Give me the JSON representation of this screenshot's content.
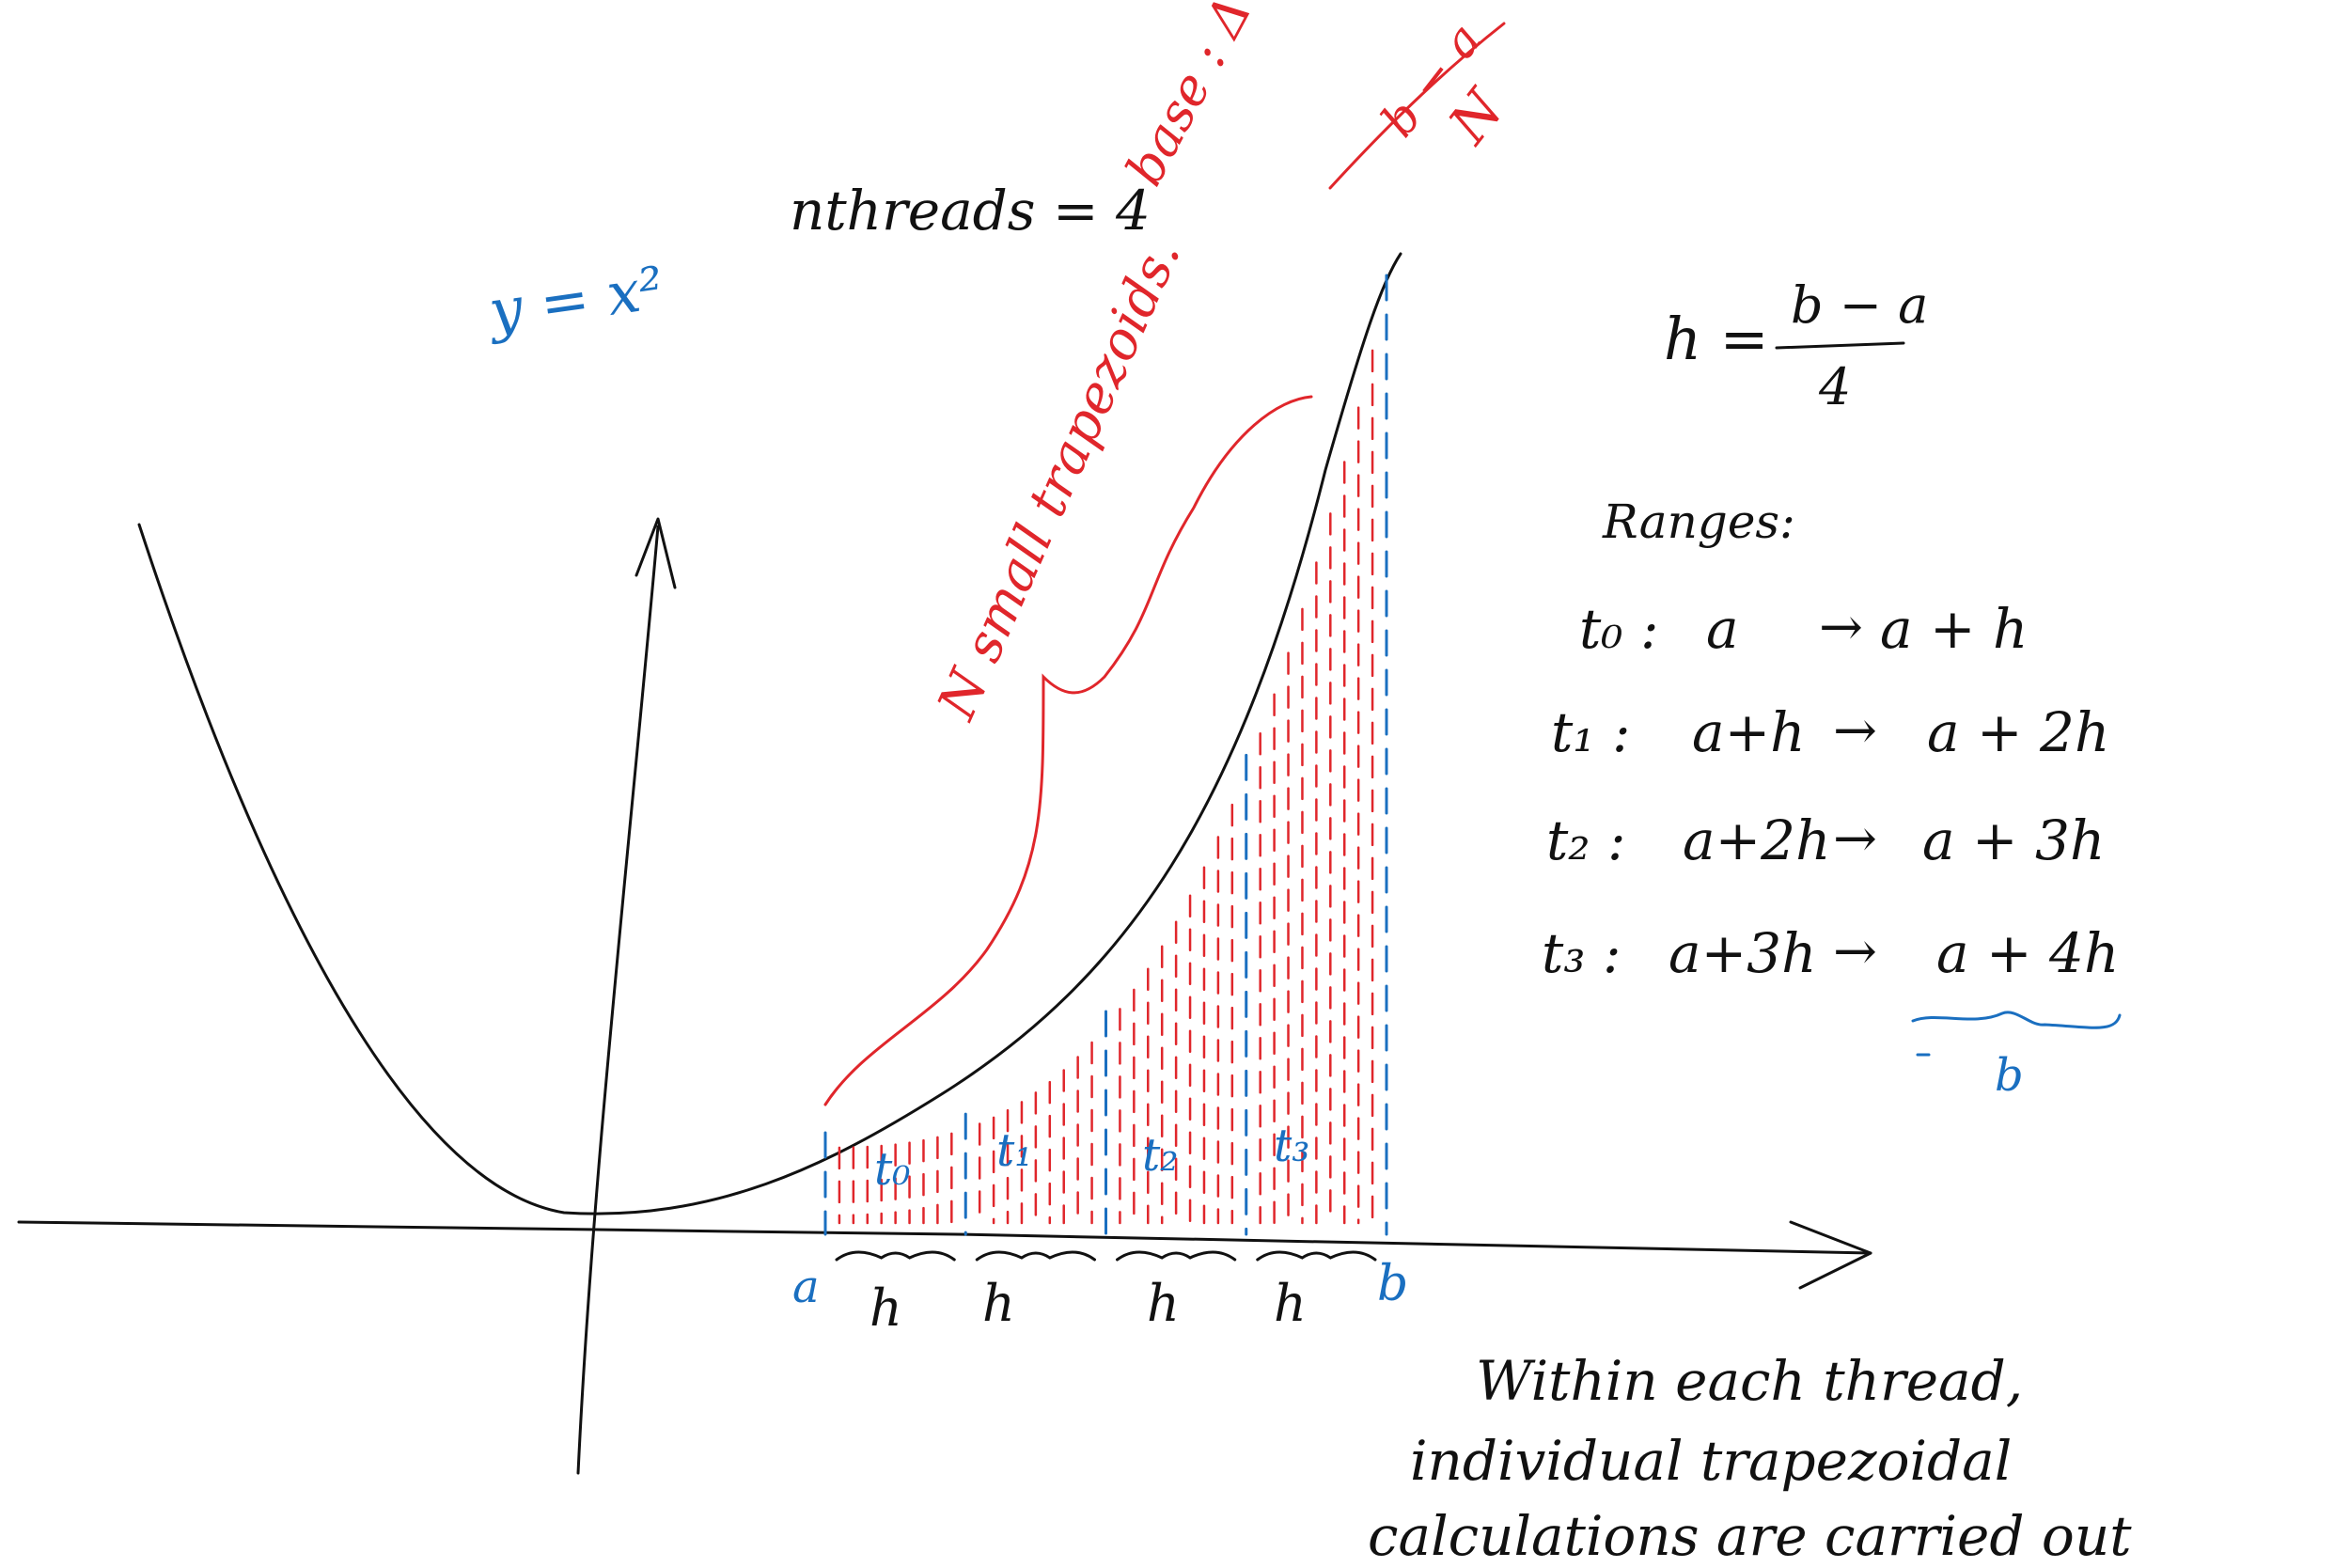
{
  "colors": {
    "ink": "#111111",
    "blue": "#1a6fc0",
    "red": "#e0262b",
    "background": "#ffffff"
  },
  "labels": {
    "nthreads": "nthreads = 4",
    "curve_equation": "y = x²",
    "base_prefix": "base :",
    "base_delta": "Δ =",
    "base_numerator": "b − a",
    "base_denominator": "N",
    "n_small": "N small trapezoids.",
    "h_prefix": "h =",
    "h_numerator": "b − a",
    "h_denominator": "4",
    "ranges_title": "Ranges:",
    "axis_a": "a",
    "axis_b": "b",
    "b_under_brace": "b",
    "note_line1": "Within each thread,",
    "note_line2": "individual trapezoidal",
    "note_line3": "calculations are carried out"
  },
  "ranges": [
    {
      "thread": "t₀ :",
      "from": "a",
      "to": "a + h"
    },
    {
      "thread": "t₁ :",
      "from": "a+h",
      "to": "a + 2h"
    },
    {
      "thread": "t₂ :",
      "from": "a+2h",
      "to": "a + 3h"
    },
    {
      "thread": "t₃ :",
      "from": "a+3h",
      "to": "a + 4h"
    }
  ],
  "threads": [
    {
      "label": "t₀",
      "width_label": "h"
    },
    {
      "label": "t₁",
      "width_label": "h"
    },
    {
      "label": "t₂",
      "width_label": "h"
    },
    {
      "label": "t₃",
      "width_label": "h"
    }
  ],
  "trapezoids_per_thread": 10
}
